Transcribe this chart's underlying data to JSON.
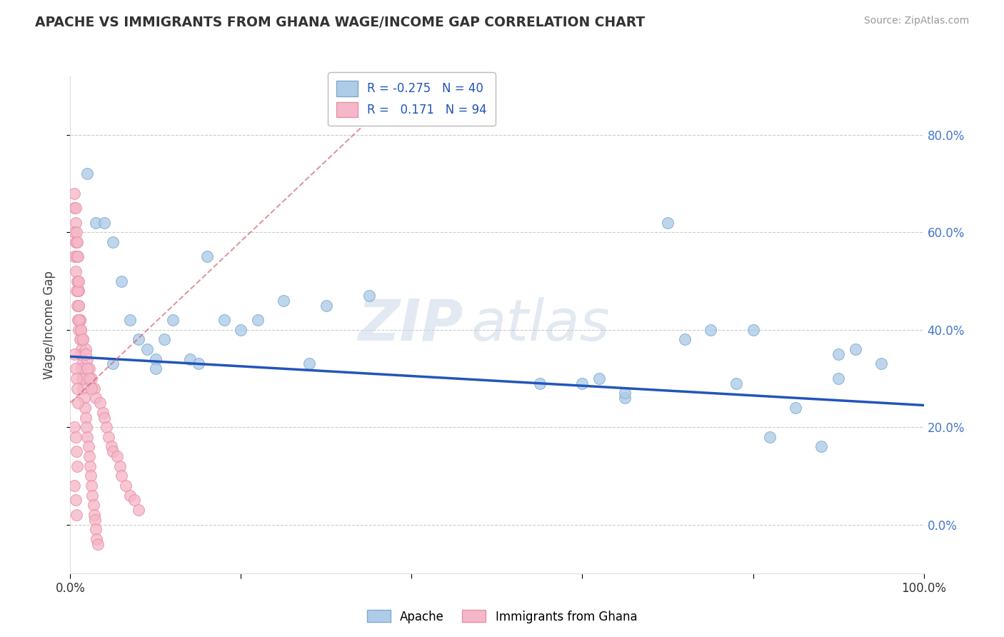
{
  "title": "APACHE VS IMMIGRANTS FROM GHANA WAGE/INCOME GAP CORRELATION CHART",
  "source": "Source: ZipAtlas.com",
  "ylabel": "Wage/Income Gap",
  "xlim": [
    0.0,
    1.0
  ],
  "ylim": [
    -0.1,
    0.92
  ],
  "ytick_vals": [
    0.0,
    0.2,
    0.4,
    0.6,
    0.8
  ],
  "ytick_labels_right": [
    "0.0%",
    "20.0%",
    "40.0%",
    "60.0%",
    "80.0%"
  ],
  "xtick_vals": [
    0.0,
    0.2,
    0.4,
    0.6,
    0.8,
    1.0
  ],
  "xtick_labels": [
    "0.0%",
    "",
    "",
    "",
    "",
    "100.0%"
  ],
  "apache_color": "#aecce8",
  "ghana_color": "#f5b8c8",
  "apache_edge": "#80aad0",
  "ghana_edge": "#e890a8",
  "trend_blue_color": "#2255bb",
  "trend_pink_color": "#d06070",
  "legend_r_apache": "-0.275",
  "legend_n_apache": "40",
  "legend_r_ghana": "0.171",
  "legend_n_ghana": "94",
  "background_color": "#ffffff",
  "grid_color": "#cccccc",
  "watermark_zip": "ZIP",
  "watermark_atlas": "atlas",
  "apache_x": [
    0.02,
    0.03,
    0.04,
    0.05,
    0.06,
    0.07,
    0.08,
    0.09,
    0.1,
    0.11,
    0.12,
    0.14,
    0.16,
    0.18,
    0.2,
    0.22,
    0.25,
    0.28,
    0.3,
    0.35,
    0.6,
    0.62,
    0.65,
    0.7,
    0.72,
    0.75,
    0.78,
    0.8,
    0.82,
    0.85,
    0.88,
    0.9,
    0.92,
    0.95,
    0.05,
    0.1,
    0.15,
    0.55,
    0.65,
    0.9
  ],
  "apache_y": [
    0.72,
    0.62,
    0.62,
    0.58,
    0.5,
    0.42,
    0.38,
    0.36,
    0.34,
    0.38,
    0.42,
    0.34,
    0.55,
    0.42,
    0.4,
    0.42,
    0.46,
    0.33,
    0.45,
    0.47,
    0.29,
    0.3,
    0.26,
    0.62,
    0.38,
    0.4,
    0.29,
    0.4,
    0.18,
    0.24,
    0.16,
    0.3,
    0.36,
    0.33,
    0.33,
    0.32,
    0.33,
    0.29,
    0.27,
    0.35
  ],
  "ghana_x": [
    0.005,
    0.006,
    0.007,
    0.008,
    0.009,
    0.01,
    0.01,
    0.011,
    0.012,
    0.013,
    0.014,
    0.015,
    0.015,
    0.016,
    0.017,
    0.018,
    0.019,
    0.02,
    0.021,
    0.022,
    0.023,
    0.024,
    0.025,
    0.026,
    0.027,
    0.028,
    0.029,
    0.03,
    0.031,
    0.032,
    0.005,
    0.006,
    0.007,
    0.008,
    0.009,
    0.01,
    0.011,
    0.012,
    0.013,
    0.014,
    0.005,
    0.006,
    0.007,
    0.008,
    0.009,
    0.01,
    0.011,
    0.012,
    0.005,
    0.006,
    0.007,
    0.008,
    0.009,
    0.01,
    0.005,
    0.006,
    0.007,
    0.008,
    0.009,
    0.005,
    0.006,
    0.007,
    0.008,
    0.005,
    0.006,
    0.007,
    0.015,
    0.018,
    0.02,
    0.022,
    0.025,
    0.028,
    0.03,
    0.035,
    0.038,
    0.04,
    0.042,
    0.045,
    0.048,
    0.05,
    0.055,
    0.058,
    0.06,
    0.065,
    0.07,
    0.075,
    0.08,
    0.01,
    0.012,
    0.015,
    0.018,
    0.02,
    0.022,
    0.025
  ],
  "ghana_y": [
    0.65,
    0.62,
    0.58,
    0.55,
    0.5,
    0.48,
    0.45,
    0.42,
    0.38,
    0.36,
    0.33,
    0.3,
    0.28,
    0.26,
    0.24,
    0.22,
    0.2,
    0.18,
    0.16,
    0.14,
    0.12,
    0.1,
    0.08,
    0.06,
    0.04,
    0.02,
    0.01,
    -0.01,
    -0.03,
    -0.04,
    0.55,
    0.52,
    0.48,
    0.45,
    0.42,
    0.4,
    0.38,
    0.35,
    0.32,
    0.3,
    0.6,
    0.58,
    0.55,
    0.5,
    0.48,
    0.45,
    0.42,
    0.4,
    0.68,
    0.65,
    0.6,
    0.58,
    0.55,
    0.5,
    0.35,
    0.32,
    0.3,
    0.28,
    0.25,
    0.2,
    0.18,
    0.15,
    0.12,
    0.08,
    0.05,
    0.02,
    0.38,
    0.36,
    0.34,
    0.32,
    0.3,
    0.28,
    0.26,
    0.25,
    0.23,
    0.22,
    0.2,
    0.18,
    0.16,
    0.15,
    0.14,
    0.12,
    0.1,
    0.08,
    0.06,
    0.05,
    0.03,
    0.42,
    0.4,
    0.38,
    0.35,
    0.32,
    0.3,
    0.28
  ]
}
